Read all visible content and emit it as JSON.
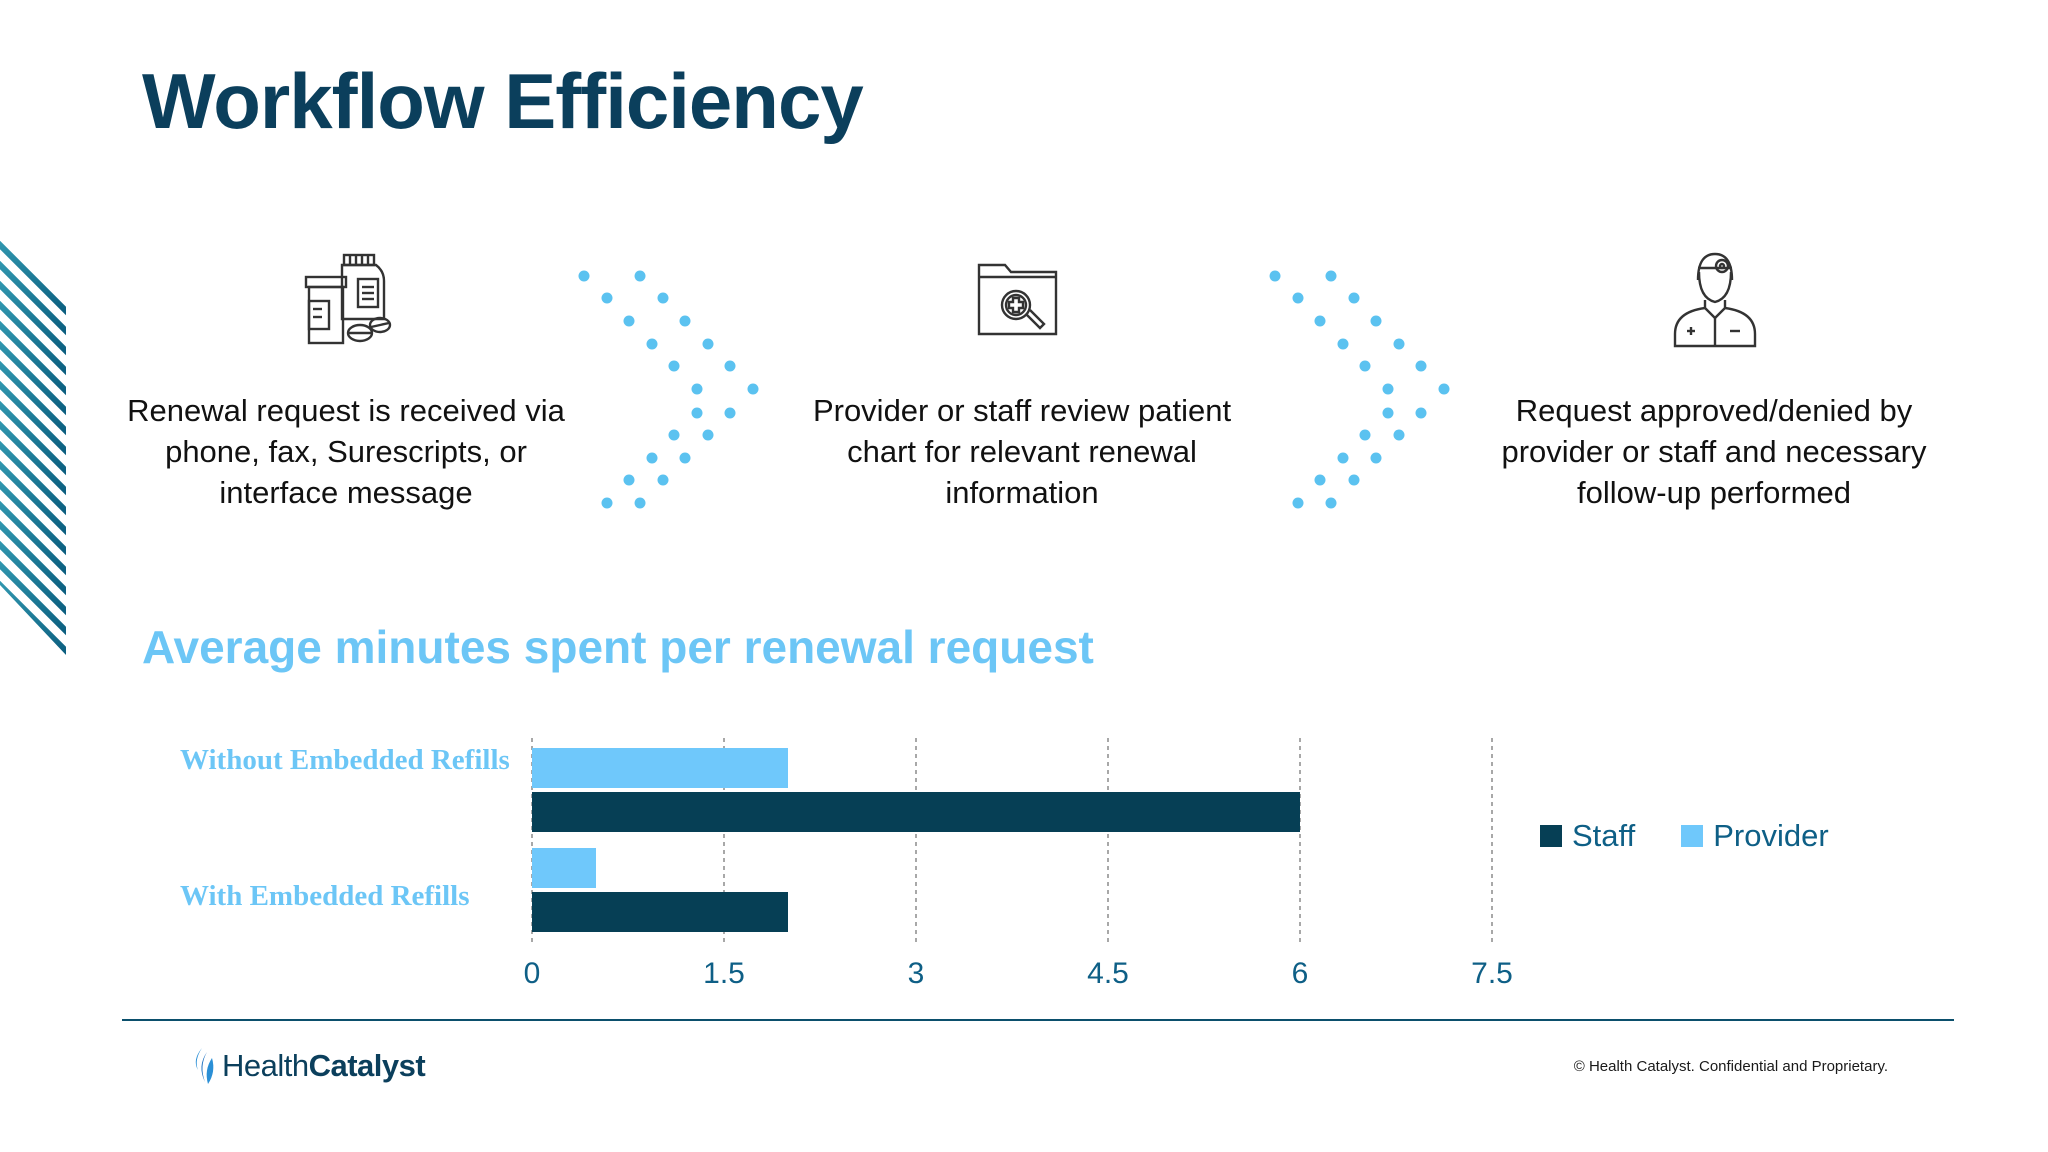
{
  "slide": {
    "title": "Workflow Efficiency",
    "subtitle": "Average minutes spent per renewal request"
  },
  "workflow": {
    "steps": [
      {
        "icon": "medication-bottles-icon",
        "text": "Renewal request is received via phone, fax, Surescripts, or interface message"
      },
      {
        "icon": "folder-search-icon",
        "text": "Provider or staff review patient chart for relevant renewal information"
      },
      {
        "icon": "doctor-icon",
        "text": "Request approved/denied by provider or staff and necessary follow-up performed"
      }
    ]
  },
  "chart_data": {
    "type": "bar",
    "orientation": "horizontal",
    "title": "Average minutes spent per renewal request",
    "categories": [
      "Without Embedded Refills",
      "With Embedded Refills"
    ],
    "series": [
      {
        "name": "Provider",
        "color": "#6fc8fb",
        "values": [
          2,
          0.5
        ]
      },
      {
        "name": "Staff",
        "color": "#063f55",
        "values": [
          6,
          2
        ]
      }
    ],
    "xlim": [
      0,
      7.5
    ],
    "xticks": [
      "0",
      "1.5",
      "3",
      "4.5",
      "6",
      "7.5"
    ],
    "xlabel": "",
    "ylabel": "",
    "grid": true,
    "legend": [
      "Staff",
      "Provider"
    ],
    "legend_position": "right"
  },
  "footer": {
    "logo_health": "Health",
    "logo_catalyst": "Catalyst",
    "copyright": "© Health Catalyst. Confidential and Proprietary."
  },
  "colors": {
    "title": "#0b3f5c",
    "accent_light": "#6cc6f6",
    "accent_dark": "#063f55"
  }
}
